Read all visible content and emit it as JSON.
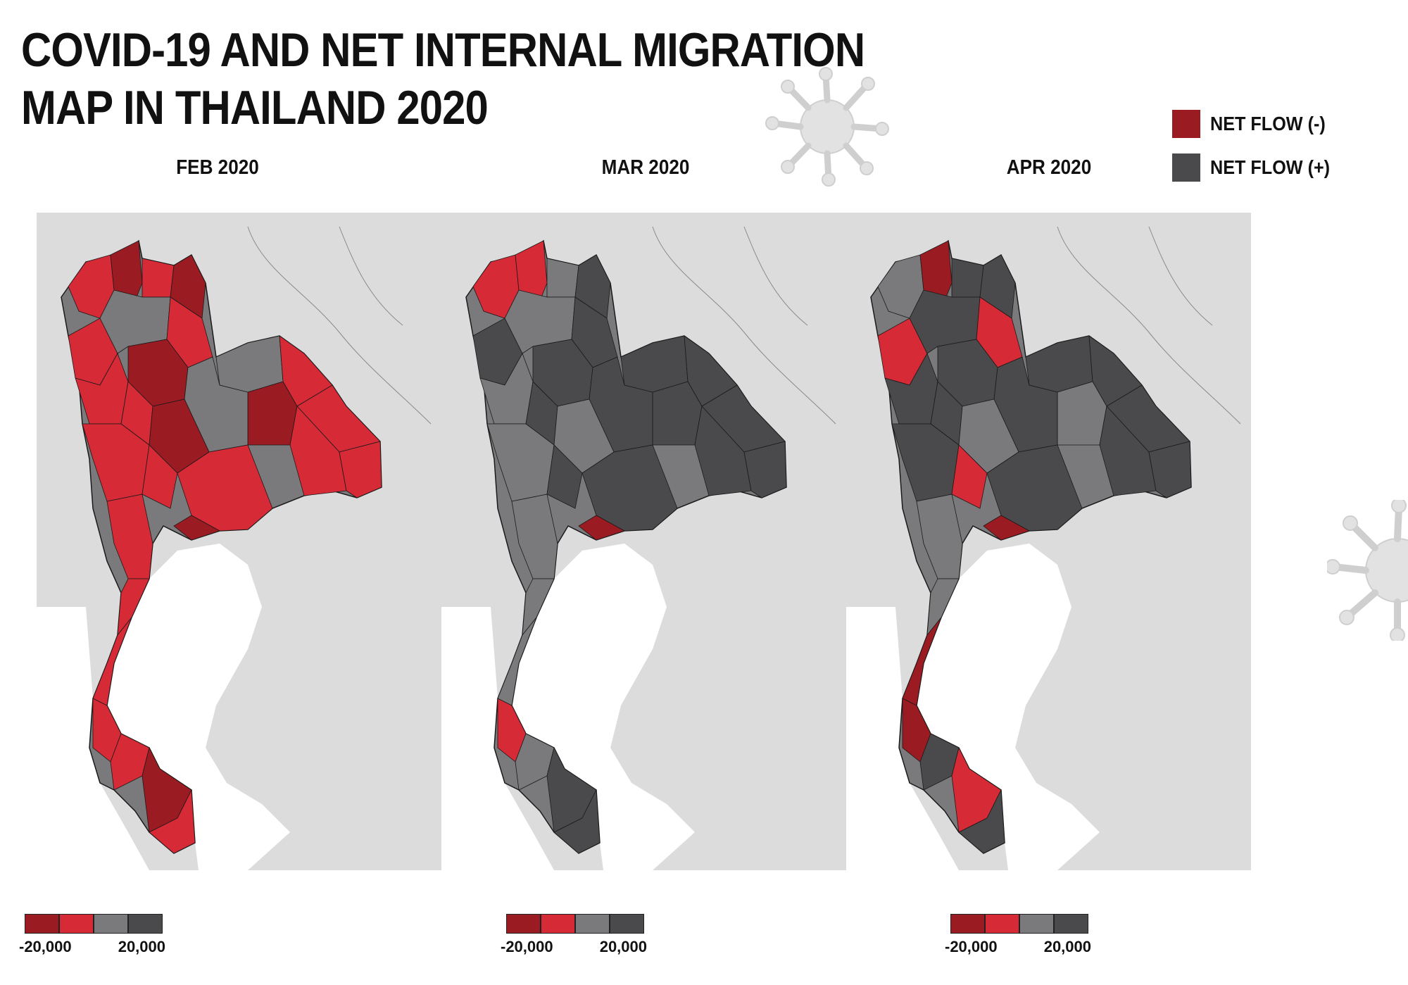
{
  "title": "COVID-19 AND NET INTERNAL MIGRATION MAP IN THAILAND 2020",
  "legend": [
    {
      "label": "NET FLOW (-)",
      "color": "#9b1b22"
    },
    {
      "label": "NET FLOW (+)",
      "color": "#4a4a4c"
    }
  ],
  "colors": {
    "dark_red": "#9b1b22",
    "red": "#d62a36",
    "mid_grey": "#7a7a7c",
    "dark_grey": "#4a4a4c",
    "background_land": "#dcdcdd",
    "sea": "#ffffff"
  },
  "scale": {
    "min_label": "-20,000",
    "max_label": "20,000"
  },
  "panels": [
    {
      "label": "FEB 2020",
      "predominant_flow": "NET FLOW (-)"
    },
    {
      "label": "MAR 2020",
      "predominant_flow": "NET FLOW (+)"
    },
    {
      "label": "APR 2020",
      "predominant_flow": "NET FLOW (+)"
    }
  ]
}
